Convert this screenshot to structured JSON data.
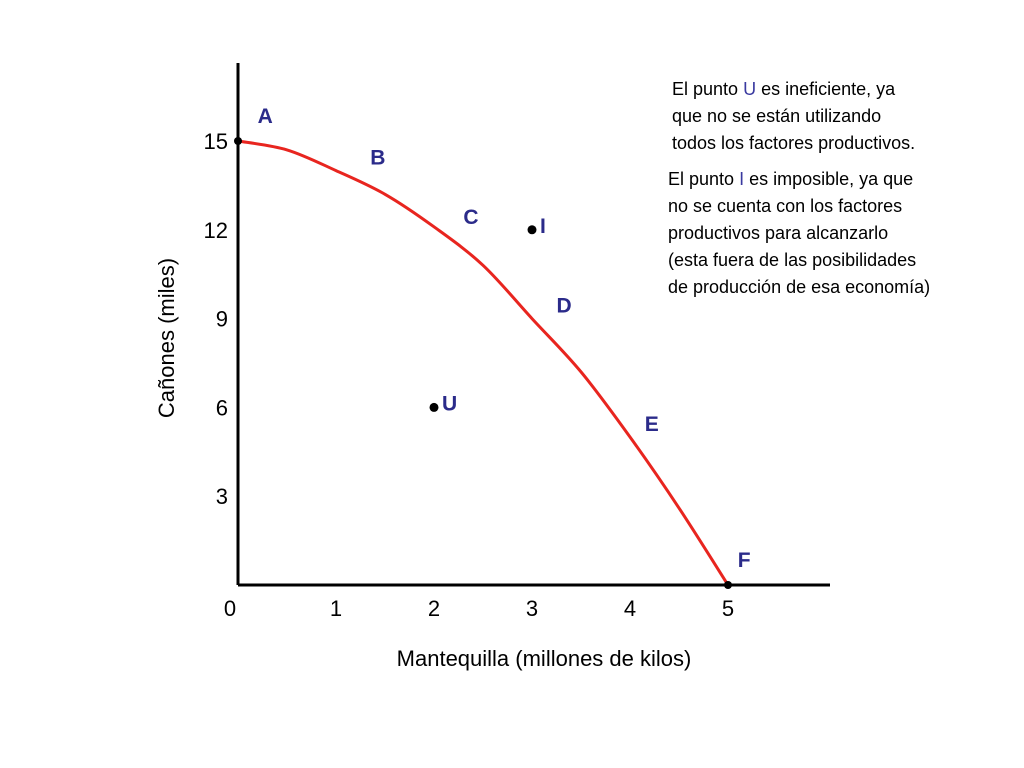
{
  "chart_data": {
    "type": "line",
    "xlabel": "Mantequilla (millones de kilos)",
    "ylabel": "Cañones (miles)",
    "x_ticks": [
      "0",
      "1",
      "2",
      "3",
      "4",
      "5"
    ],
    "y_ticks": [
      "3",
      "6",
      "9",
      "12",
      "15"
    ],
    "xlim": [
      0,
      6
    ],
    "ylim": [
      0,
      18
    ],
    "grid": false,
    "frontier": {
      "color": "#e8251f",
      "x": [
        0,
        0.5,
        1,
        1.5,
        2,
        2.5,
        3,
        3.5,
        4,
        4.5,
        5
      ],
      "y": [
        15,
        14.7,
        14.0,
        13.2,
        12.1,
        10.8,
        9.0,
        7.2,
        5.0,
        2.6,
        0
      ]
    },
    "frontier_labels": [
      {
        "label": "A",
        "x": 0.2,
        "y": 15.6
      },
      {
        "label": "B",
        "x": 1.35,
        "y": 14.2
      },
      {
        "label": "C",
        "x": 2.3,
        "y": 12.2
      },
      {
        "label": "D",
        "x": 3.25,
        "y": 9.2
      },
      {
        "label": "E",
        "x": 4.15,
        "y": 5.2
      },
      {
        "label": "F",
        "x": 5.1,
        "y": 0.6
      }
    ],
    "endpoints": [
      {
        "x": 0,
        "y": 15
      },
      {
        "x": 5,
        "y": 0
      }
    ],
    "points": [
      {
        "label": "I",
        "x": 3,
        "y": 12
      },
      {
        "label": "U",
        "x": 2,
        "y": 6
      }
    ],
    "label_color": "#2b2b8a"
  },
  "notes": {
    "note_u": {
      "line1_pre": "El punto ",
      "line1_hl": "U",
      "line1_post": " es ineficiente, ya",
      "line2": "que no se están utilizando",
      "line3": "todos los factores productivos."
    },
    "note_i": {
      "line1_pre": "El punto ",
      "line1_hl": "I",
      "line1_post": " es imposible, ya que",
      "line2": "no se cuenta con los factores",
      "line3": "productivos para alcanzarlo",
      "line4": "(esta fuera de las posibilidades",
      "line5": "de producción de esa economía)"
    }
  }
}
